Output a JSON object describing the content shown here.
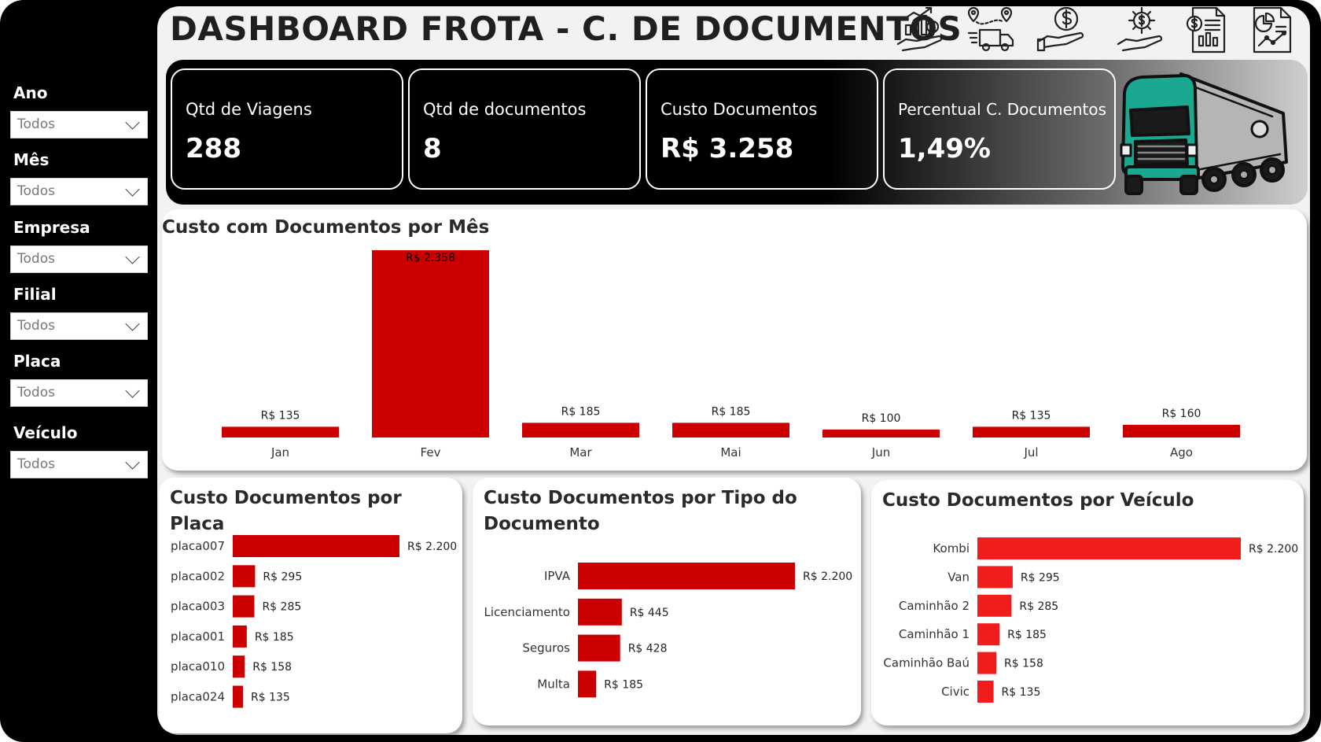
{
  "header": {
    "title": "DASHBOARD FROTA - C. DE DOCUMENTOS"
  },
  "top_icons": [
    "investment-hand-icon",
    "delivery-route-icon",
    "money-hand-icon",
    "gear-dollar-hand-icon",
    "invoice-document-icon",
    "report-chart-icon"
  ],
  "filters": [
    {
      "label": "Ano",
      "value": "Todos"
    },
    {
      "label": "Mês",
      "value": "Todos"
    },
    {
      "label": "Empresa",
      "value": "Todos"
    },
    {
      "label": "Filial",
      "value": "Todos"
    },
    {
      "label": "Placa",
      "value": "Todos"
    },
    {
      "label": "Veículo",
      "value": "Todos"
    }
  ],
  "kpis": [
    {
      "label": "Qtd de Viagens",
      "value": "288"
    },
    {
      "label": "Qtd de documentos",
      "value": "8"
    },
    {
      "label": "Custo Documentos",
      "value": "R$ 3.258"
    },
    {
      "label": "Percentual C. Documentos",
      "value": "1,49%"
    }
  ],
  "colors": {
    "bar": "#cc0000",
    "bar_vehicle": "#f11c1c",
    "background": "#000000"
  },
  "chart_data": [
    {
      "type": "bar",
      "orientation": "vertical",
      "title": "Custo com Documentos por Mês",
      "categories": [
        "Jan",
        "Fev",
        "Mar",
        "Mai",
        "Jun",
        "Jul",
        "Ago"
      ],
      "values": [
        135,
        2358,
        185,
        185,
        100,
        135,
        160
      ],
      "labels": [
        "R$ 135",
        "R$ 2.358",
        "R$ 185",
        "R$ 185",
        "R$ 100",
        "R$ 135",
        "R$ 160"
      ],
      "grid": false
    },
    {
      "type": "bar",
      "orientation": "horizontal",
      "title": "Custo Documentos por Placa",
      "categories": [
        "placa007",
        "placa002",
        "placa003",
        "placa001",
        "placa010",
        "placa024"
      ],
      "values": [
        2200,
        295,
        285,
        185,
        158,
        135
      ],
      "labels": [
        "R$ 2.200",
        "R$ 295",
        "R$ 285",
        "R$ 185",
        "R$ 158",
        "R$ 135"
      ],
      "grid": false
    },
    {
      "type": "bar",
      "orientation": "horizontal",
      "title": "Custo Documentos por Tipo do Documento",
      "categories": [
        "IPVA",
        "Licenciamento",
        "Seguros",
        "Multa"
      ],
      "values": [
        2200,
        445,
        428,
        185
      ],
      "labels": [
        "R$ 2.200",
        "R$ 445",
        "R$ 428",
        "R$ 185"
      ],
      "grid": false
    },
    {
      "type": "bar",
      "orientation": "horizontal",
      "title": "Custo Documentos por Veículo",
      "categories": [
        "Kombi",
        "Van",
        "Caminhão 2",
        "Caminhão 1",
        "Caminhão Baú",
        "Civic"
      ],
      "values": [
        2200,
        295,
        285,
        185,
        158,
        135
      ],
      "labels": [
        "R$ 2.200",
        "R$ 295",
        "R$ 285",
        "R$ 185",
        "R$ 158",
        "R$ 135"
      ],
      "grid": false
    }
  ]
}
